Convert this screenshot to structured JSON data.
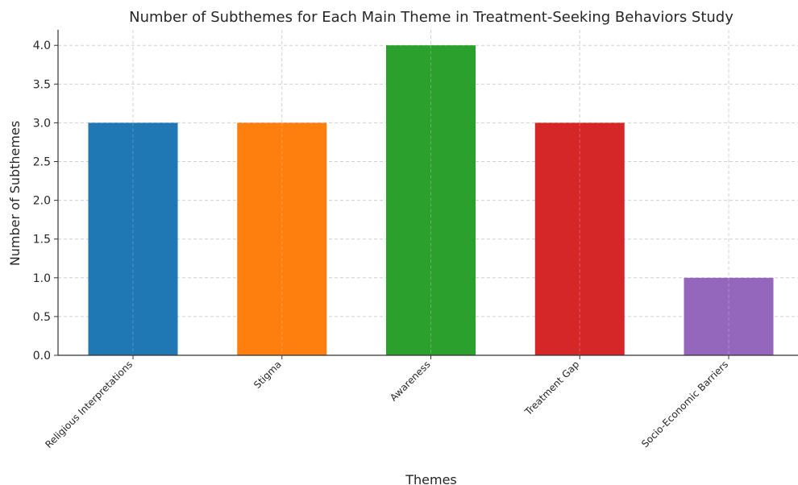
{
  "chart_data": {
    "type": "bar",
    "title": "Number of Subthemes for Each Main Theme in Treatment-Seeking Behaviors Study",
    "xlabel": "Themes",
    "ylabel": "Number of Subthemes",
    "categories": [
      "Religious Interpretations",
      "Stigma",
      "Awareness",
      "Treatment Gap",
      "Socio-Economic Barriers"
    ],
    "values": [
      3,
      3,
      4,
      3,
      1
    ],
    "colors": [
      "#1f77b4",
      "#ff7f0e",
      "#2ca02c",
      "#d62728",
      "#9467bd"
    ],
    "ylim": [
      0,
      4.2
    ],
    "yticks": [
      0.0,
      0.5,
      1.0,
      1.5,
      2.0,
      2.5,
      3.0,
      3.5,
      4.0
    ],
    "ytick_labels": [
      "0.0",
      "0.5",
      "1.0",
      "1.5",
      "2.0",
      "2.5",
      "3.0",
      "3.5",
      "4.0"
    ],
    "grid": true
  }
}
